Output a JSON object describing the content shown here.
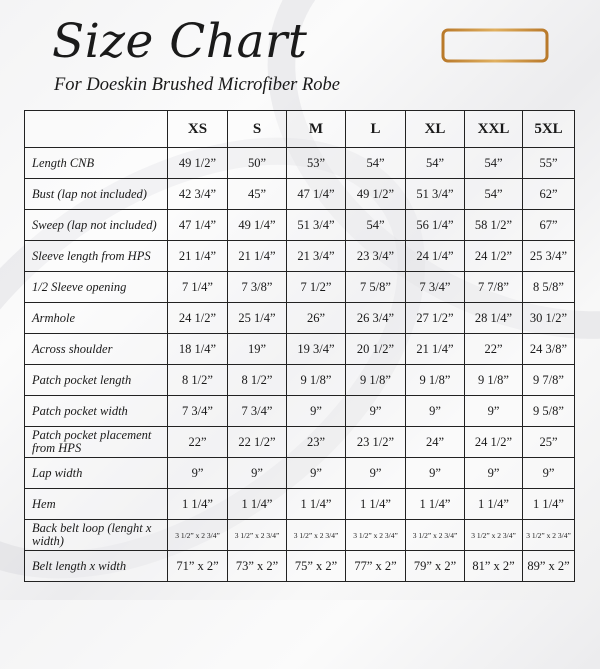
{
  "header": {
    "title": "Size Chart",
    "subtitle": "For Doeskin Brushed Microfiber Robe",
    "icon": "ruler-icon",
    "accent_color": "#c8913a"
  },
  "table": {
    "columns": [
      "",
      "XS",
      "S",
      "M",
      "L",
      "XL",
      "XXL",
      "5XL"
    ],
    "rows": [
      {
        "label": "Length CNB",
        "values": [
          "49 1/2”",
          "50”",
          "53”",
          "54”",
          "54”",
          "54”",
          "55”"
        ]
      },
      {
        "label": "Bust (lap not included)",
        "values": [
          "42 3/4”",
          "45”",
          "47 1/4”",
          "49 1/2”",
          "51 3/4”",
          "54”",
          "62”"
        ]
      },
      {
        "label": "Sweep (lap not included)",
        "values": [
          "47 1/4”",
          "49 1/4”",
          "51 3/4”",
          "54”",
          "56 1/4”",
          "58 1/2”",
          "67”"
        ]
      },
      {
        "label": "Sleeve length from HPS",
        "values": [
          "21 1/4”",
          "21 1/4”",
          "21 3/4”",
          "23 3/4”",
          "24 1/4”",
          "24 1/2”",
          "25 3/4”"
        ]
      },
      {
        "label": "1/2 Sleeve opening",
        "values": [
          "7 1/4”",
          "7 3/8”",
          "7 1/2”",
          "7 5/8”",
          "7 3/4”",
          "7 7/8”",
          "8 5/8”"
        ]
      },
      {
        "label": "Armhole",
        "values": [
          "24 1/2”",
          "25 1/4”",
          "26”",
          "26 3/4”",
          "27 1/2”",
          "28 1/4”",
          "30 1/2”"
        ]
      },
      {
        "label": "Across shoulder",
        "values": [
          "18 1/4”",
          "19”",
          "19 3/4”",
          "20 1/2”",
          "21 1/4”",
          "22”",
          "24 3/8”"
        ]
      },
      {
        "label": "Patch pocket length",
        "values": [
          "8 1/2”",
          "8 1/2”",
          "9 1/8”",
          "9 1/8”",
          "9 1/8”",
          "9 1/8”",
          "9 7/8”"
        ]
      },
      {
        "label": "Patch pocket width",
        "values": [
          "7 3/4”",
          "7 3/4”",
          "9”",
          "9”",
          "9”",
          "9”",
          "9 5/8”"
        ]
      },
      {
        "label": "Patch pocket placement from HPS",
        "values": [
          "22”",
          "22 1/2”",
          "23”",
          "23 1/2”",
          "24”",
          "24 1/2”",
          "25”"
        ]
      },
      {
        "label": "Lap width",
        "values": [
          "9”",
          "9”",
          "9”",
          "9”",
          "9”",
          "9”",
          "9”"
        ]
      },
      {
        "label": "Hem",
        "values": [
          "1 1/4”",
          "1 1/4”",
          "1 1/4”",
          "1 1/4”",
          "1 1/4”",
          "1 1/4”",
          "1 1/4”"
        ]
      },
      {
        "label": "Back belt loop (lenght x width)",
        "values": [
          "3 1/2” x 2 3/4”",
          "3 1/2” x 2 3/4”",
          "3 1/2” x 2 3/4”",
          "3 1/2” x 2 3/4”",
          "3 1/2” x 2 3/4”",
          "3 1/2” x 2 3/4”",
          "3 1/2” x 2 3/4”"
        ]
      },
      {
        "label": "Belt length x width",
        "values": [
          "71” x 2”",
          "73” x 2”",
          "75” x 2”",
          "77” x 2”",
          "79” x 2”",
          "81” x 2”",
          "89” x 2”"
        ]
      }
    ]
  }
}
